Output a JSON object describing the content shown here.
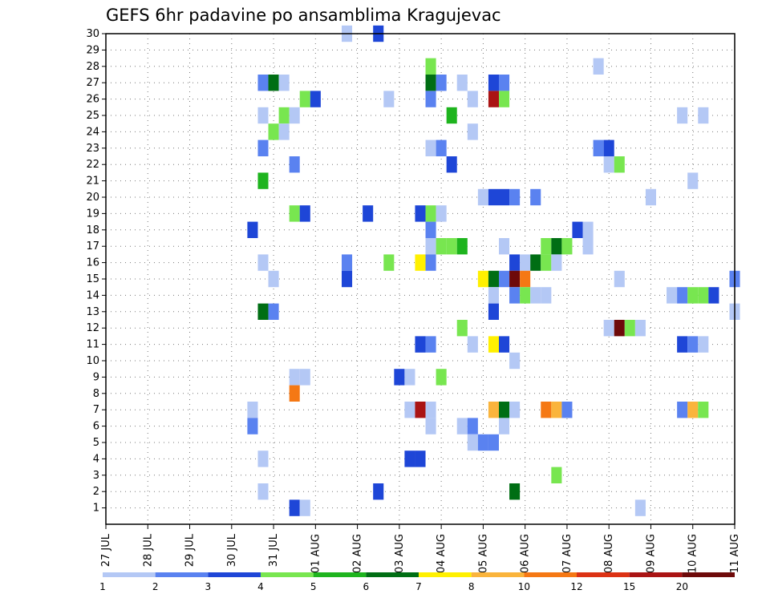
{
  "chart_data": {
    "type": "heatmap",
    "title": "GEFS 6hr padavine po ansamblima Kragujevac",
    "xlabel": "",
    "ylabel": "",
    "grid": true,
    "x_tick_labels": [
      "27 JUL",
      "28 JUL",
      "29 JUL",
      "30 JUL",
      "31 JUL",
      "01 AUG",
      "02 AUG",
      "03 AUG",
      "04 AUG",
      "05 AUG",
      "06 AUG",
      "07 AUG",
      "08 AUG",
      "09 AUG",
      "10 AUG",
      "11 AUG"
    ],
    "y_tick_labels": [
      "1",
      "2",
      "3",
      "4",
      "5",
      "6",
      "7",
      "8",
      "9",
      "10",
      "11",
      "12",
      "13",
      "14",
      "15",
      "16",
      "17",
      "18",
      "19",
      "20",
      "21",
      "22",
      "23",
      "24",
      "25",
      "26",
      "27",
      "28",
      "29",
      "30"
    ],
    "xlim": [
      0,
      15
    ],
    "ylim": [
      0,
      30
    ],
    "colorbar": {
      "labels": [
        "1",
        "2",
        "3",
        "4",
        "5",
        "6",
        "7",
        "8",
        "10",
        "12",
        "15",
        "20"
      ],
      "colors": [
        "#b4c8f5",
        "#5a82f0",
        "#1e46d7",
        "#78e650",
        "#1eb41e",
        "#006e14",
        "#fff000",
        "#fab43c",
        "#f57814",
        "#dc3214",
        "#aa1414",
        "#6e0a0a"
      ]
    },
    "x_step_days": 0.25,
    "cells": [
      {
        "x": 5.75,
        "y": 30,
        "v": 1
      },
      {
        "x": 6.5,
        "y": 30,
        "v": 3
      },
      {
        "x": 7.75,
        "y": 28,
        "v": 4
      },
      {
        "x": 11.75,
        "y": 28,
        "v": 1
      },
      {
        "x": 3.75,
        "y": 27,
        "v": 2
      },
      {
        "x": 4.0,
        "y": 27,
        "v": 6
      },
      {
        "x": 4.25,
        "y": 27,
        "v": 1
      },
      {
        "x": 7.75,
        "y": 27,
        "v": 6
      },
      {
        "x": 8.0,
        "y": 27,
        "v": 2
      },
      {
        "x": 8.5,
        "y": 27,
        "v": 1
      },
      {
        "x": 9.25,
        "y": 27,
        "v": 3
      },
      {
        "x": 9.5,
        "y": 27,
        "v": 2
      },
      {
        "x": 4.75,
        "y": 26,
        "v": 4
      },
      {
        "x": 5.0,
        "y": 26,
        "v": 3
      },
      {
        "x": 6.75,
        "y": 26,
        "v": 1
      },
      {
        "x": 7.75,
        "y": 26,
        "v": 2
      },
      {
        "x": 8.75,
        "y": 26,
        "v": 1
      },
      {
        "x": 9.25,
        "y": 26,
        "v": 15
      },
      {
        "x": 9.5,
        "y": 26,
        "v": 4
      },
      {
        "x": 3.75,
        "y": 25,
        "v": 1
      },
      {
        "x": 4.25,
        "y": 25,
        "v": 4
      },
      {
        "x": 4.5,
        "y": 25,
        "v": 1
      },
      {
        "x": 8.25,
        "y": 25,
        "v": 5
      },
      {
        "x": 13.75,
        "y": 25,
        "v": 1
      },
      {
        "x": 14.25,
        "y": 25,
        "v": 1
      },
      {
        "x": 4.0,
        "y": 24,
        "v": 4
      },
      {
        "x": 4.25,
        "y": 24,
        "v": 1
      },
      {
        "x": 8.75,
        "y": 24,
        "v": 1
      },
      {
        "x": 3.75,
        "y": 23,
        "v": 2
      },
      {
        "x": 7.75,
        "y": 23,
        "v": 1
      },
      {
        "x": 8.0,
        "y": 23,
        "v": 2
      },
      {
        "x": 11.75,
        "y": 23,
        "v": 2
      },
      {
        "x": 12.0,
        "y": 23,
        "v": 3
      },
      {
        "x": 4.5,
        "y": 22,
        "v": 2
      },
      {
        "x": 8.25,
        "y": 22,
        "v": 3
      },
      {
        "x": 12.0,
        "y": 22,
        "v": 1
      },
      {
        "x": 12.25,
        "y": 22,
        "v": 4
      },
      {
        "x": 3.75,
        "y": 21,
        "v": 5
      },
      {
        "x": 14.0,
        "y": 21,
        "v": 1
      },
      {
        "x": 9.0,
        "y": 20,
        "v": 1
      },
      {
        "x": 9.25,
        "y": 20,
        "v": 3
      },
      {
        "x": 9.5,
        "y": 20,
        "v": 3
      },
      {
        "x": 9.75,
        "y": 20,
        "v": 2
      },
      {
        "x": 10.25,
        "y": 20,
        "v": 2
      },
      {
        "x": 13.0,
        "y": 20,
        "v": 1
      },
      {
        "x": 4.5,
        "y": 19,
        "v": 4
      },
      {
        "x": 4.75,
        "y": 19,
        "v": 3
      },
      {
        "x": 6.25,
        "y": 19,
        "v": 3
      },
      {
        "x": 7.5,
        "y": 19,
        "v": 3
      },
      {
        "x": 7.75,
        "y": 19,
        "v": 4
      },
      {
        "x": 8.0,
        "y": 19,
        "v": 1
      },
      {
        "x": 3.5,
        "y": 18,
        "v": 3
      },
      {
        "x": 7.75,
        "y": 18,
        "v": 2
      },
      {
        "x": 11.25,
        "y": 18,
        "v": 3
      },
      {
        "x": 11.5,
        "y": 18,
        "v": 1
      },
      {
        "x": 7.75,
        "y": 17,
        "v": 1
      },
      {
        "x": 8.0,
        "y": 17,
        "v": 4
      },
      {
        "x": 8.25,
        "y": 17,
        "v": 4
      },
      {
        "x": 8.5,
        "y": 17,
        "v": 5
      },
      {
        "x": 9.5,
        "y": 17,
        "v": 1
      },
      {
        "x": 10.5,
        "y": 17,
        "v": 4
      },
      {
        "x": 10.75,
        "y": 17,
        "v": 6
      },
      {
        "x": 11.0,
        "y": 17,
        "v": 4
      },
      {
        "x": 11.5,
        "y": 17,
        "v": 1
      },
      {
        "x": 3.75,
        "y": 16,
        "v": 1
      },
      {
        "x": 5.75,
        "y": 16,
        "v": 2
      },
      {
        "x": 6.75,
        "y": 16,
        "v": 4
      },
      {
        "x": 7.5,
        "y": 16,
        "v": 7
      },
      {
        "x": 7.75,
        "y": 16,
        "v": 2
      },
      {
        "x": 9.75,
        "y": 16,
        "v": 3
      },
      {
        "x": 10.0,
        "y": 16,
        "v": 1
      },
      {
        "x": 10.25,
        "y": 16,
        "v": 6
      },
      {
        "x": 10.5,
        "y": 16,
        "v": 4
      },
      {
        "x": 10.75,
        "y": 16,
        "v": 1
      },
      {
        "x": 4.0,
        "y": 15,
        "v": 1
      },
      {
        "x": 5.75,
        "y": 15,
        "v": 3
      },
      {
        "x": 9.0,
        "y": 15,
        "v": 7
      },
      {
        "x": 9.25,
        "y": 15,
        "v": 6
      },
      {
        "x": 9.5,
        "y": 15,
        "v": 2
      },
      {
        "x": 9.75,
        "y": 15,
        "v": 20
      },
      {
        "x": 10.0,
        "y": 15,
        "v": 10
      },
      {
        "x": 12.25,
        "y": 15,
        "v": 1
      },
      {
        "x": 15.0,
        "y": 15,
        "v": 2
      },
      {
        "x": 9.25,
        "y": 14,
        "v": 1
      },
      {
        "x": 9.75,
        "y": 14,
        "v": 2
      },
      {
        "x": 10.0,
        "y": 14,
        "v": 4
      },
      {
        "x": 10.25,
        "y": 14,
        "v": 1
      },
      {
        "x": 10.5,
        "y": 14,
        "v": 1
      },
      {
        "x": 13.5,
        "y": 14,
        "v": 1
      },
      {
        "x": 13.75,
        "y": 14,
        "v": 2
      },
      {
        "x": 14.0,
        "y": 14,
        "v": 4
      },
      {
        "x": 14.25,
        "y": 14,
        "v": 4
      },
      {
        "x": 14.5,
        "y": 14,
        "v": 3
      },
      {
        "x": 3.75,
        "y": 13,
        "v": 6
      },
      {
        "x": 4.0,
        "y": 13,
        "v": 2
      },
      {
        "x": 9.25,
        "y": 13,
        "v": 3
      },
      {
        "x": 15.0,
        "y": 13,
        "v": 1
      },
      {
        "x": 8.5,
        "y": 12,
        "v": 4
      },
      {
        "x": 12.0,
        "y": 12,
        "v": 1
      },
      {
        "x": 12.25,
        "y": 12,
        "v": 20
      },
      {
        "x": 12.5,
        "y": 12,
        "v": 4
      },
      {
        "x": 12.75,
        "y": 12,
        "v": 1
      },
      {
        "x": 7.5,
        "y": 11,
        "v": 3
      },
      {
        "x": 7.75,
        "y": 11,
        "v": 2
      },
      {
        "x": 8.75,
        "y": 11,
        "v": 1
      },
      {
        "x": 9.25,
        "y": 11,
        "v": 7
      },
      {
        "x": 9.5,
        "y": 11,
        "v": 3
      },
      {
        "x": 13.75,
        "y": 11,
        "v": 3
      },
      {
        "x": 14.0,
        "y": 11,
        "v": 2
      },
      {
        "x": 14.25,
        "y": 11,
        "v": 1
      },
      {
        "x": 9.75,
        "y": 10,
        "v": 1
      },
      {
        "x": 4.5,
        "y": 9,
        "v": 1
      },
      {
        "x": 4.75,
        "y": 9,
        "v": 1
      },
      {
        "x": 7.0,
        "y": 9,
        "v": 3
      },
      {
        "x": 7.25,
        "y": 9,
        "v": 1
      },
      {
        "x": 8.0,
        "y": 9,
        "v": 4
      },
      {
        "x": 4.5,
        "y": 8,
        "v": 10
      },
      {
        "x": 3.5,
        "y": 7,
        "v": 1
      },
      {
        "x": 7.25,
        "y": 7,
        "v": 1
      },
      {
        "x": 7.5,
        "y": 7,
        "v": 15
      },
      {
        "x": 7.75,
        "y": 7,
        "v": 1
      },
      {
        "x": 9.25,
        "y": 7,
        "v": 8
      },
      {
        "x": 9.5,
        "y": 7,
        "v": 6
      },
      {
        "x": 9.75,
        "y": 7,
        "v": 1
      },
      {
        "x": 10.5,
        "y": 7,
        "v": 10
      },
      {
        "x": 10.75,
        "y": 7,
        "v": 8
      },
      {
        "x": 11.0,
        "y": 7,
        "v": 2
      },
      {
        "x": 13.75,
        "y": 7,
        "v": 2
      },
      {
        "x": 14.0,
        "y": 7,
        "v": 8
      },
      {
        "x": 14.25,
        "y": 7,
        "v": 4
      },
      {
        "x": 3.5,
        "y": 6,
        "v": 2
      },
      {
        "x": 7.75,
        "y": 6,
        "v": 1
      },
      {
        "x": 8.5,
        "y": 6,
        "v": 1
      },
      {
        "x": 8.75,
        "y": 6,
        "v": 2
      },
      {
        "x": 9.5,
        "y": 6,
        "v": 1
      },
      {
        "x": 8.75,
        "y": 5,
        "v": 1
      },
      {
        "x": 9.0,
        "y": 5,
        "v": 2
      },
      {
        "x": 9.25,
        "y": 5,
        "v": 2
      },
      {
        "x": 3.75,
        "y": 4,
        "v": 1
      },
      {
        "x": 7.25,
        "y": 4,
        "v": 3
      },
      {
        "x": 7.5,
        "y": 4,
        "v": 3
      },
      {
        "x": 10.75,
        "y": 3,
        "v": 4
      },
      {
        "x": 3.75,
        "y": 2,
        "v": 1
      },
      {
        "x": 6.5,
        "y": 2,
        "v": 3
      },
      {
        "x": 9.75,
        "y": 2,
        "v": 6
      },
      {
        "x": 4.5,
        "y": 1,
        "v": 3
      },
      {
        "x": 4.75,
        "y": 1,
        "v": 1
      },
      {
        "x": 12.75,
        "y": 1,
        "v": 1
      }
    ]
  }
}
